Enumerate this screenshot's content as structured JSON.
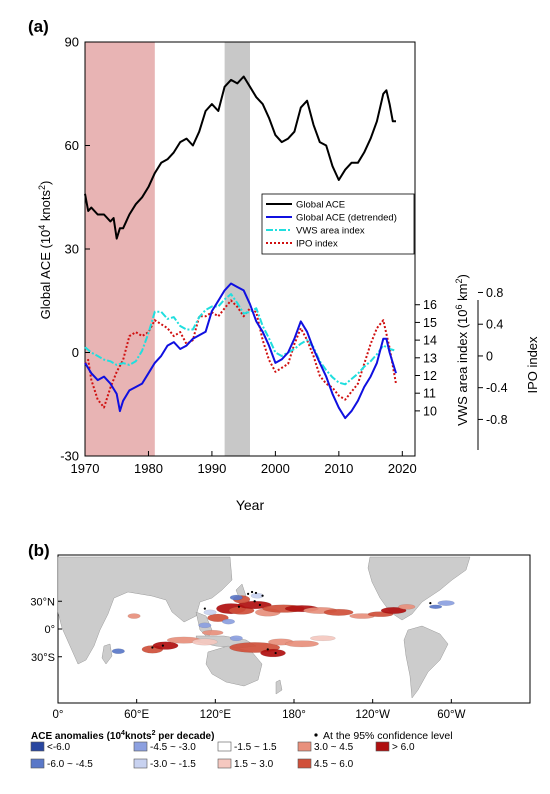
{
  "panel_a": {
    "label": "(a)",
    "xlabel": "Year",
    "ylabel_left": "Global ACE (10",
    "ylabel_left_sup": "4",
    "ylabel_left_unit": " knots",
    "ylabel_left_sup2": "2",
    "ylabel_left_end": ")",
    "ylabel_vws": "VWS area index (10",
    "ylabel_vws_sup": "6",
    "ylabel_vws_unit": " km",
    "ylabel_vws_sup2": "2",
    "ylabel_vws_end": ")",
    "ylabel_ipo": "IPO index",
    "xticks": [
      "1970",
      "1980",
      "1990",
      "2000",
      "2010",
      "2020"
    ],
    "yticks_left": [
      "-30",
      "0",
      "30",
      "60",
      "90"
    ],
    "yticks_vws": [
      "10",
      "11",
      "12",
      "13",
      "14",
      "15",
      "16"
    ],
    "yticks_ipo": [
      "-0.8",
      "-0.4",
      "0",
      "0.4",
      "0.8"
    ],
    "legend": [
      {
        "label": "Global ACE",
        "color": "#000000",
        "dash": "solid"
      },
      {
        "label": "Global ACE (detrended)",
        "color": "#1010e0",
        "dash": "solid"
      },
      {
        "label": "VWS area index",
        "color": "#20dede",
        "dash": "dashdot"
      },
      {
        "label": "IPO index",
        "color": "#d01010",
        "dash": "dotted"
      }
    ],
    "shaded_periods": [
      {
        "start": 1970,
        "end": 1981,
        "color": "#e8b4b4"
      },
      {
        "start": 1992,
        "end": 1996,
        "color": "#c8c8c8"
      }
    ]
  },
  "panel_b": {
    "label": "(b)",
    "lon_ticks": [
      "0°",
      "60°E",
      "120°E",
      "180°",
      "120°W",
      "60°W"
    ],
    "lat_ticks": [
      "30°N",
      "0°",
      "30°S"
    ],
    "legend_title": "ACE anomalies (10",
    "legend_title_sup": "4",
    "legend_title_unit": "knots",
    "legend_title_sup2": "2",
    "legend_title_end": " per decade)",
    "confidence_note": "At the 95% confidence level",
    "classes": [
      {
        "label": "<-6.0",
        "color": "#2846a0"
      },
      {
        "label": "-6.0 ~ -4.5",
        "color": "#5a78c8"
      },
      {
        "label": "-4.5 ~ -3.0",
        "color": "#8ca0e0"
      },
      {
        "label": "-3.0 ~ -1.5",
        "color": "#c8d2f0"
      },
      {
        "label": "-1.5 ~ 1.5",
        "color": "#ffffff"
      },
      {
        "label": "1.5 ~ 3.0",
        "color": "#f5c8c0"
      },
      {
        "label": "3.0 ~ 4.5",
        "color": "#e8907c"
      },
      {
        "label": "4.5 ~ 6.0",
        "color": "#d0503a"
      },
      {
        "label": "> 6.0",
        "color": "#b01010"
      }
    ]
  },
  "chart_data": {
    "type": "line",
    "title": "",
    "xlabel": "Year",
    "xlim": [
      1970,
      2022
    ],
    "ylim": [
      -30,
      90
    ],
    "ylabel": "Global ACE (10^4 knots^2)",
    "secondary_axes": [
      {
        "label": "VWS area index (10^6 km^2)",
        "ylim": [
          9.4,
          17.2
        ],
        "ticks": [
          10,
          11,
          12,
          13,
          14,
          15,
          16
        ]
      },
      {
        "label": "IPO index",
        "ylim": [
          -1.0,
          1.0
        ],
        "ticks": [
          -0.8,
          -0.4,
          0,
          0.4,
          0.8
        ]
      }
    ],
    "series": [
      {
        "name": "Global ACE",
        "axis": "left",
        "x": [
          1970,
          1970.5,
          1971,
          1972,
          1973,
          1974,
          1974.5,
          1975,
          1975.5,
          1976,
          1977,
          1978,
          1979,
          1980,
          1981,
          1982,
          1983,
          1984,
          1985,
          1986,
          1987,
          1988,
          1989,
          1990,
          1991,
          1992,
          1993,
          1994,
          1995,
          1996,
          1997,
          1998,
          1999,
          2000,
          2001,
          2002,
          2003,
          2004,
          2005,
          2006,
          2007,
          2008,
          2009,
          2010,
          2011,
          2012,
          2013,
          2014,
          2015,
          2016,
          2017,
          2017.5,
          2018,
          2018.5,
          2019
        ],
        "y": [
          46,
          41,
          42,
          40,
          40,
          38,
          39,
          33,
          36,
          36,
          40,
          43,
          45,
          48,
          52,
          55,
          56,
          58,
          61,
          62,
          60,
          64,
          70,
          72,
          70,
          77,
          79,
          78,
          80,
          77,
          74,
          72,
          68,
          63,
          61,
          62,
          64,
          71,
          73,
          66,
          61,
          60,
          54,
          50,
          53,
          55,
          55,
          58,
          62,
          67,
          75,
          76,
          72,
          67,
          67
        ]
      },
      {
        "name": "Global ACE (detrended)",
        "axis": "left",
        "x": [
          1970,
          1971,
          1972,
          1973,
          1974,
          1975,
          1975.5,
          1976,
          1977,
          1978,
          1979,
          1980,
          1981,
          1982,
          1983,
          1984,
          1985,
          1986,
          1987,
          1988,
          1989,
          1990,
          1991,
          1992,
          1993,
          1994,
          1995,
          1996,
          1997,
          1998,
          1999,
          2000,
          2001,
          2002,
          2003,
          2004,
          2005,
          2006,
          2007,
          2008,
          2009,
          2010,
          2011,
          2012,
          2013,
          2014,
          2015,
          2016,
          2017,
          2017.5,
          2018,
          2019
        ],
        "y": [
          -3,
          -6,
          -8,
          -7,
          -9,
          -12,
          -17,
          -14,
          -11,
          -10,
          -9,
          -6,
          -3,
          -1,
          2,
          3,
          1,
          2,
          4,
          5,
          6,
          12,
          15,
          18,
          20,
          19,
          18,
          14,
          9,
          6,
          2,
          -3,
          -2,
          0,
          4,
          9,
          6,
          1,
          -3,
          -7,
          -12,
          -16,
          -19,
          -17,
          -14,
          -10,
          -7,
          -3,
          4,
          4,
          0,
          -6
        ]
      },
      {
        "name": "VWS area index",
        "axis": "vws",
        "x": [
          1970,
          1971,
          1972,
          1973,
          1974,
          1975,
          1976,
          1977,
          1978,
          1979,
          1980,
          1981,
          1982,
          1983,
          1984,
          1985,
          1986,
          1987,
          1988,
          1989,
          1990,
          1991,
          1992,
          1993,
          1994,
          1995,
          1996,
          1997,
          1998,
          1999,
          2000,
          2001,
          2002,
          2003,
          2004,
          2005,
          2006,
          2007,
          2008,
          2009,
          2010,
          2011,
          2012,
          2013,
          2014,
          2015,
          2016,
          2017,
          2018,
          2019
        ],
        "y": [
          13.6,
          13.3,
          13.1,
          12.9,
          12.8,
          12.6,
          12.7,
          12.6,
          12.8,
          13.4,
          14.4,
          15.6,
          15.6,
          15.2,
          15.3,
          14.8,
          14.6,
          14.6,
          15.3,
          15.7,
          15.9,
          15.9,
          16.3,
          16.6,
          16.1,
          15.5,
          15.6,
          15.8,
          14.8,
          14.1,
          13.3,
          13.1,
          13.3,
          13.5,
          13.8,
          14.0,
          13.6,
          12.8,
          12.3,
          11.9,
          11.6,
          11.5,
          11.8,
          12.1,
          12.5,
          12.8,
          13.2,
          13.7,
          13.5,
          13.4
        ]
      },
      {
        "name": "IPO index",
        "axis": "ipo",
        "x": [
          1970,
          1970.5,
          1971,
          1972,
          1973,
          1974,
          1975,
          1976,
          1977,
          1978,
          1979,
          1980,
          1981,
          1982,
          1983,
          1984,
          1985,
          1986,
          1987,
          1988,
          1989,
          1990,
          1991,
          1992,
          1993,
          1994,
          1995,
          1996,
          1997,
          1998,
          1999,
          2000,
          2001,
          2002,
          2003,
          2004,
          2005,
          2006,
          2007,
          2008,
          2009,
          2010,
          2011,
          2012,
          2013,
          2014,
          2015,
          2016,
          2017,
          2018,
          2019
        ],
        "y": [
          -0.1,
          -0.05,
          -0.3,
          -0.55,
          -0.65,
          -0.4,
          -0.2,
          -0.05,
          0.25,
          0.3,
          0.25,
          0.3,
          0.45,
          0.4,
          0.35,
          0.25,
          0.3,
          0.15,
          0.2,
          0.5,
          0.5,
          0.55,
          0.5,
          0.6,
          0.7,
          0.62,
          0.5,
          0.6,
          0.55,
          0.2,
          -0.05,
          -0.2,
          -0.15,
          -0.1,
          0.15,
          0.35,
          0.2,
          0.0,
          -0.25,
          -0.35,
          -0.4,
          -0.5,
          -0.55,
          -0.45,
          -0.35,
          -0.1,
          0.15,
          0.35,
          0.45,
          0.1,
          -0.35
        ]
      }
    ],
    "shaded_periods": [
      [
        1970,
        1981
      ],
      [
        1992,
        1996
      ]
    ],
    "legend_position": "right-middle",
    "grid": false
  }
}
